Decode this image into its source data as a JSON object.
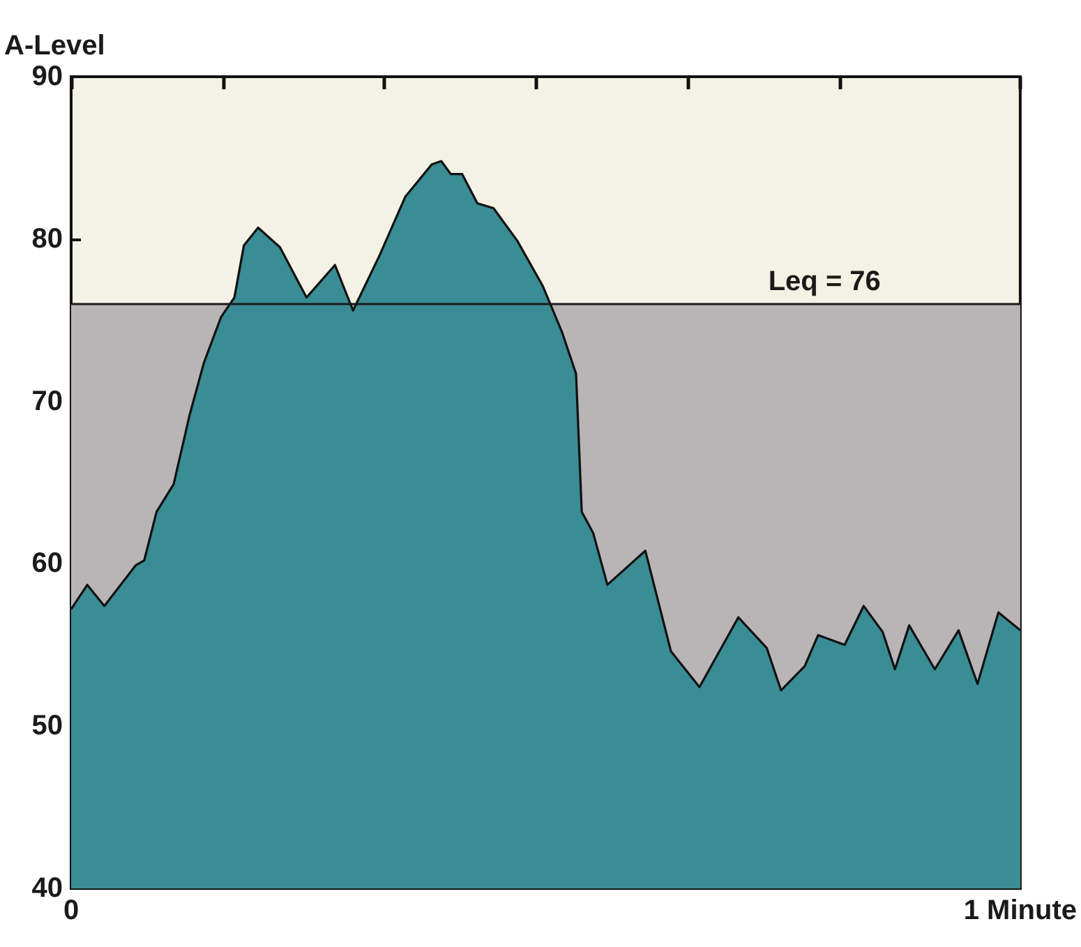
{
  "chart_data": {
    "type": "area",
    "ylabel": "A-Level",
    "x": [
      0,
      0.017,
      0.035,
      0.068,
      0.077,
      0.09,
      0.108,
      0.125,
      0.14,
      0.158,
      0.172,
      0.182,
      0.197,
      0.22,
      0.248,
      0.278,
      0.297,
      0.325,
      0.352,
      0.38,
      0.39,
      0.4,
      0.412,
      0.428,
      0.445,
      0.47,
      0.497,
      0.517,
      0.532,
      0.538,
      0.55,
      0.565,
      0.605,
      0.632,
      0.662,
      0.703,
      0.733,
      0.748,
      0.773,
      0.787,
      0.815,
      0.835,
      0.855,
      0.868,
      0.883,
      0.91,
      0.935,
      0.955,
      0.977,
      1
    ],
    "series": [
      {
        "color": "#3a8d94",
        "values": [
          57.2,
          58.7,
          57.4,
          59.9,
          60.2,
          63.2,
          64.9,
          69.2,
          72.4,
          75.2,
          76.4,
          79.6,
          80.7,
          79.5,
          76.4,
          78.4,
          75.6,
          79.0,
          82.6,
          84.6,
          84.8,
          84.0,
          84.0,
          82.2,
          81.9,
          79.9,
          77.1,
          74.3,
          71.7,
          63.2,
          61.9,
          58.7,
          60.8,
          54.6,
          52.4,
          56.7,
          54.8,
          52.2,
          53.7,
          55.6,
          55.0,
          57.4,
          55.8,
          53.5,
          56.2,
          53.5,
          55.9,
          52.6,
          57.0,
          55.9
        ]
      }
    ],
    "xlim": [
      0,
      1
    ],
    "xticks": [
      0,
      {
        "value": 0.16,
        "label": null
      },
      {
        "value": 0.33,
        "label": null
      },
      {
        "value": 0.49,
        "label": null
      },
      {
        "value": 0.65,
        "label": null
      },
      {
        "value": 0.81,
        "label": null
      },
      {
        "value": 1,
        "label": "1 Minute"
      }
    ],
    "ylim": [
      40,
      90
    ],
    "yticks": [
      40,
      50,
      60,
      70,
      80,
      90
    ],
    "ref_lines": [
      {
        "axis": "y",
        "value": 76,
        "label": "Leq = 76",
        "color": "#1a1a1a"
      }
    ],
    "bands": [
      {
        "axis": "y",
        "from": 40,
        "to": 76,
        "color": "#b9b5b6"
      }
    ],
    "grid": false,
    "marker": "none",
    "line_style": "solid"
  }
}
